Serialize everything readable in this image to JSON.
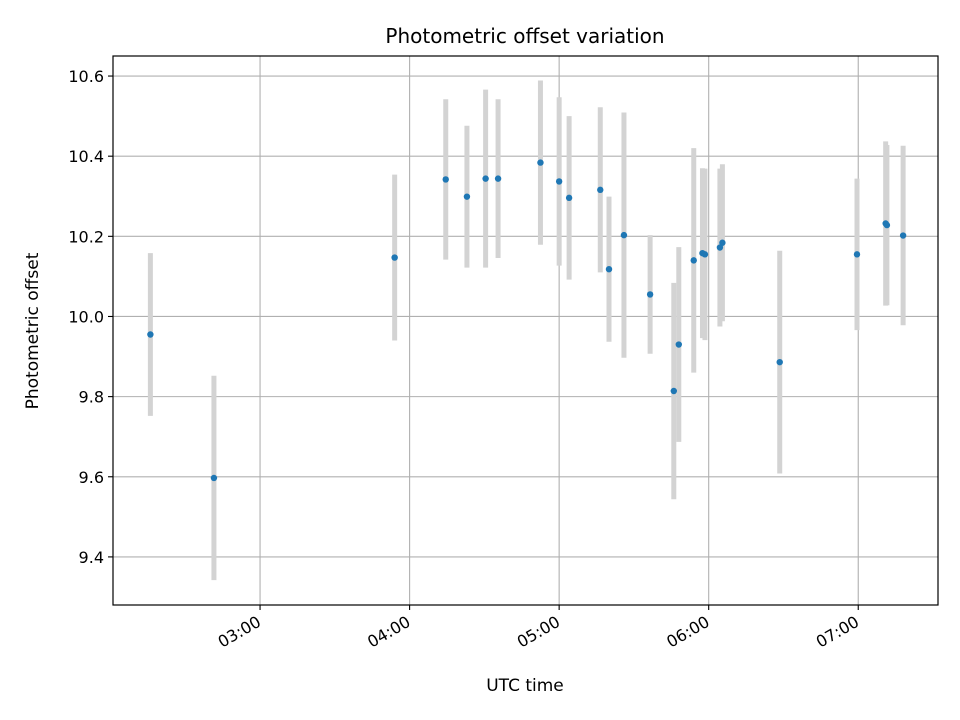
{
  "chart_data": {
    "type": "scatter",
    "title": "Photometric offset variation",
    "xlabel": "UTC time",
    "ylabel": "Photometric offset",
    "x_ticks": [
      "03:00",
      "04:00",
      "05:00",
      "06:00",
      "07:00"
    ],
    "x_tick_minutes": [
      180,
      240,
      300,
      360,
      420
    ],
    "xlim_minutes": [
      121,
      452
    ],
    "y_ticks": [
      "9.4",
      "9.6",
      "9.8",
      "10.0",
      "10.2",
      "10.4",
      "10.6"
    ],
    "y_tick_values": [
      9.4,
      9.6,
      9.8,
      10.0,
      10.2,
      10.4,
      10.6
    ],
    "ylim": [
      9.28,
      10.65
    ],
    "grid": true,
    "colors": {
      "point": "#1f77b4",
      "errorbar": "#d3d3d3",
      "grid": "#b0b0b0"
    },
    "series": [
      {
        "points": [
          {
            "t": 136,
            "y": 9.955,
            "err": 0.203
          },
          {
            "t": 161.5,
            "y": 9.597,
            "err": 0.255
          },
          {
            "t": 234,
            "y": 10.147,
            "err": 0.207
          },
          {
            "t": 254.5,
            "y": 10.342,
            "err": 0.2
          },
          {
            "t": 263,
            "y": 10.299,
            "err": 0.177
          },
          {
            "t": 270.5,
            "y": 10.344,
            "err": 0.222
          },
          {
            "t": 275.5,
            "y": 10.344,
            "err": 0.198
          },
          {
            "t": 292.5,
            "y": 10.384,
            "err": 0.205
          },
          {
            "t": 300,
            "y": 10.337,
            "err": 0.21
          },
          {
            "t": 304,
            "y": 10.296,
            "err": 0.204
          },
          {
            "t": 316.5,
            "y": 10.316,
            "err": 0.206
          },
          {
            "t": 320,
            "y": 10.118,
            "err": 0.181
          },
          {
            "t": 326,
            "y": 10.203,
            "err": 0.306
          },
          {
            "t": 336.5,
            "y": 10.055,
            "err": 0.148
          },
          {
            "t": 346,
            "y": 9.814,
            "err": 0.27
          },
          {
            "t": 348,
            "y": 9.93,
            "err": 0.243
          },
          {
            "t": 354,
            "y": 10.14,
            "err": 0.28
          },
          {
            "t": 357.5,
            "y": 10.158,
            "err": 0.212
          },
          {
            "t": 358.5,
            "y": 10.155,
            "err": 0.214
          },
          {
            "t": 364.5,
            "y": 10.172,
            "err": 0.197
          },
          {
            "t": 365.5,
            "y": 10.184,
            "err": 0.196
          },
          {
            "t": 388.5,
            "y": 9.886,
            "err": 0.278
          },
          {
            "t": 419.5,
            "y": 10.155,
            "err": 0.189
          },
          {
            "t": 431,
            "y": 10.232,
            "err": 0.205
          },
          {
            "t": 431.5,
            "y": 10.228,
            "err": 0.2
          },
          {
            "t": 438,
            "y": 10.202,
            "err": 0.224
          }
        ]
      }
    ]
  }
}
